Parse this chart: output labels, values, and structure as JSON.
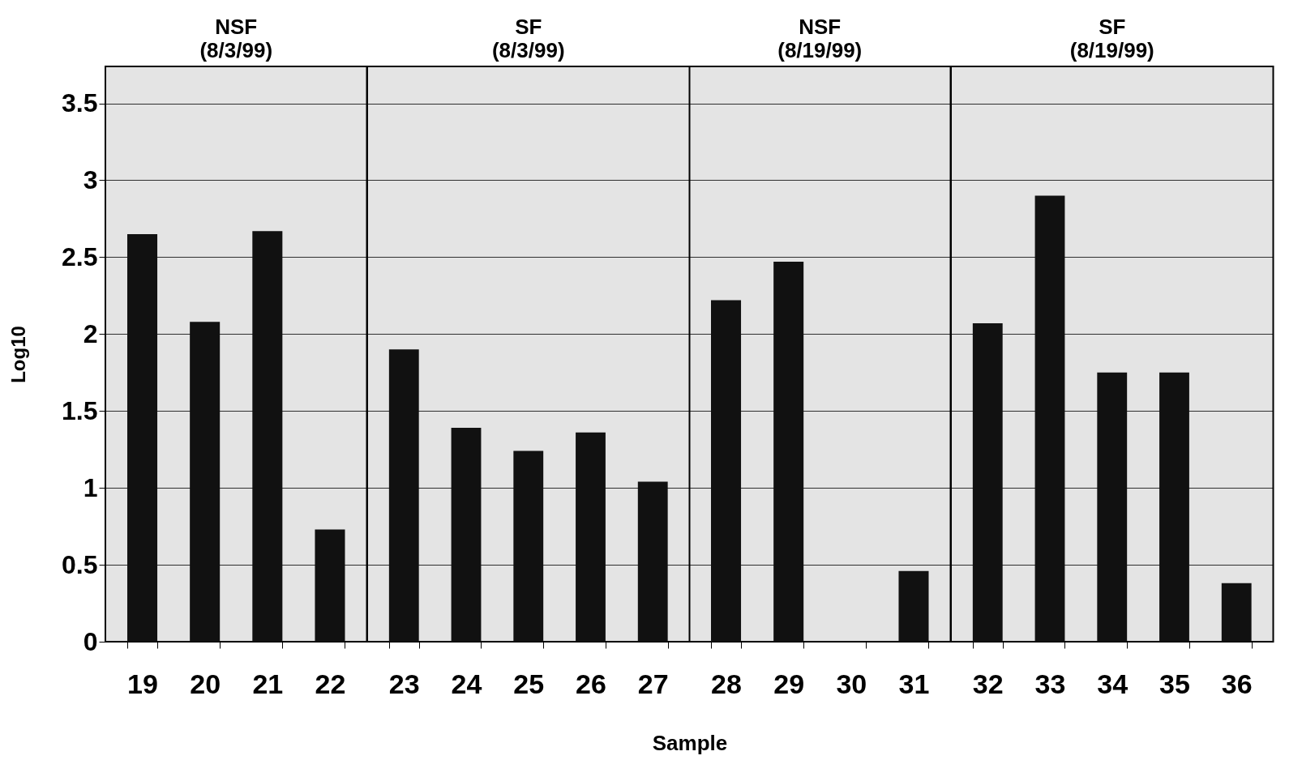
{
  "chart_data": [
    {
      "type": "bar",
      "title": "NSF",
      "subtitle": "(8/3/99)",
      "ylabel": "Log10",
      "categories": [
        "19",
        "20",
        "21",
        "22"
      ],
      "values": [
        2.65,
        2.08,
        2.67,
        0.73
      ],
      "color": "#111111",
      "ylim": [
        0,
        3.74
      ],
      "yticks": [
        0,
        0.5,
        1,
        1.5,
        2,
        2.5,
        3,
        3.5
      ],
      "grid": "y"
    },
    {
      "type": "bar",
      "title": "SF",
      "subtitle": "(8/3/99)",
      "xlabel": "Sample",
      "categories": [
        "23",
        "24",
        "25",
        "26",
        "27"
      ],
      "values": [
        1.9,
        1.39,
        1.24,
        1.36,
        1.04
      ],
      "color": "#111111",
      "ylim": [
        0,
        3.74
      ],
      "yticks": [
        0,
        0.5,
        1,
        1.5,
        2,
        2.5,
        3,
        3.5
      ],
      "grid": "y",
      "tick_labels": "x"
    },
    {
      "type": "bar",
      "title": "NSF",
      "subtitle": "(8/19/99)",
      "categories": [
        "28",
        "29",
        "30",
        "31"
      ],
      "values": [
        2.22,
        2.47,
        0,
        0.46
      ],
      "color": "#111111",
      "ylim": [
        0,
        3.74
      ],
      "yticks": [
        0,
        0.5,
        1,
        1.5,
        2,
        2.5,
        3,
        3.5
      ],
      "grid": "y",
      "tick_labels": "x"
    },
    {
      "type": "bar",
      "title": "SF",
      "subtitle": "(8/19/99)",
      "categories": [
        "32",
        "33",
        "34",
        "35",
        "36"
      ],
      "values": [
        2.07,
        2.9,
        1.75,
        1.75,
        0.38
      ],
      "color": "#111111",
      "ylim": [
        0,
        3.74
      ],
      "yticks": [
        0,
        0.5,
        1,
        1.5,
        2,
        2.5,
        3,
        3.5
      ],
      "grid": "y",
      "tick_labels": "x"
    }
  ]
}
